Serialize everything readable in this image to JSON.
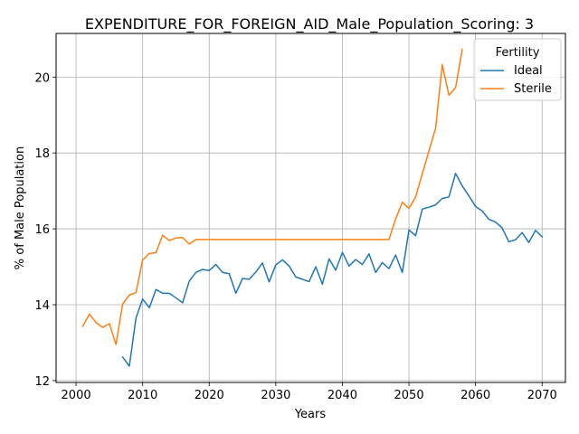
{
  "chart_data": {
    "type": "line",
    "title": "EXPENDITURE_FOR_FOREIGN_AID_Male_Population_Scoring: 3",
    "xlabel": "Years",
    "ylabel": "% of Male Population",
    "xlim": [
      1997,
      2073.5
    ],
    "ylim": [
      11.95,
      21.15
    ],
    "xticks": [
      2000,
      2010,
      2020,
      2030,
      2040,
      2050,
      2060,
      2070
    ],
    "yticks": [
      12,
      14,
      16,
      18,
      20
    ],
    "grid": true,
    "legend": {
      "title": "Fertility",
      "placement": "top-right"
    },
    "series": [
      {
        "name": "Ideal",
        "color": "#1f77b4",
        "x": [
          2007,
          2008,
          2009,
          2010,
          2011,
          2012,
          2013,
          2014,
          2015,
          2016,
          2017,
          2018,
          2019,
          2020,
          2021,
          2022,
          2023,
          2024,
          2025,
          2026,
          2027,
          2028,
          2029,
          2030,
          2031,
          2032,
          2033,
          2034,
          2035,
          2036,
          2037,
          2038,
          2039,
          2040,
          2041,
          2042,
          2043,
          2044,
          2045,
          2046,
          2047,
          2048,
          2049,
          2050,
          2051,
          2052,
          2053,
          2054,
          2055,
          2056,
          2057,
          2058,
          2059,
          2060,
          2061,
          2062,
          2063,
          2064,
          2065,
          2066,
          2067,
          2068,
          2069,
          2070
        ],
        "values": [
          12.62,
          12.38,
          13.65,
          14.15,
          13.92,
          14.4,
          14.3,
          14.3,
          14.18,
          14.05,
          14.62,
          14.85,
          14.93,
          14.9,
          15.06,
          14.85,
          14.82,
          14.3,
          14.69,
          14.67,
          14.86,
          15.1,
          14.6,
          15.05,
          15.18,
          15.02,
          14.73,
          14.67,
          14.61,
          15.0,
          14.54,
          15.21,
          14.91,
          15.38,
          15.02,
          15.19,
          15.06,
          15.34,
          14.85,
          15.11,
          14.95,
          15.31,
          14.85,
          15.97,
          15.82,
          16.52,
          16.57,
          16.63,
          16.8,
          16.84,
          17.46,
          17.13,
          16.87,
          16.59,
          16.47,
          16.25,
          16.18,
          16.02,
          15.66,
          15.71,
          15.9,
          15.64,
          15.96,
          15.79
        ]
      },
      {
        "name": "Sterile",
        "color": "#ff7f0e",
        "x": [
          2001,
          2002,
          2003,
          2004,
          2005,
          2006,
          2007,
          2008,
          2009,
          2010,
          2011,
          2012,
          2013,
          2014,
          2015,
          2016,
          2017,
          2018,
          2019,
          2020,
          2021,
          2022,
          2023,
          2024,
          2025,
          2026,
          2027,
          2028,
          2029,
          2030,
          2031,
          2032,
          2033,
          2034,
          2035,
          2036,
          2037,
          2038,
          2039,
          2040,
          2041,
          2042,
          2043,
          2044,
          2045,
          2046,
          2047,
          2048,
          2049,
          2050,
          2051,
          2052,
          2053,
          2054,
          2055,
          2056,
          2057,
          2058
        ],
        "values": [
          13.43,
          13.75,
          13.53,
          13.4,
          13.5,
          12.95,
          14.02,
          14.25,
          14.32,
          15.18,
          15.35,
          15.37,
          15.83,
          15.69,
          15.76,
          15.77,
          15.6,
          15.72,
          15.72,
          15.72,
          15.72,
          15.72,
          15.72,
          15.72,
          15.72,
          15.72,
          15.72,
          15.72,
          15.72,
          15.72,
          15.72,
          15.72,
          15.72,
          15.72,
          15.72,
          15.72,
          15.72,
          15.72,
          15.72,
          15.72,
          15.72,
          15.72,
          15.72,
          15.72,
          15.72,
          15.72,
          15.72,
          16.26,
          16.7,
          16.54,
          16.84,
          17.45,
          18.05,
          18.65,
          20.33,
          19.52,
          19.72,
          20.73
        ]
      }
    ]
  }
}
